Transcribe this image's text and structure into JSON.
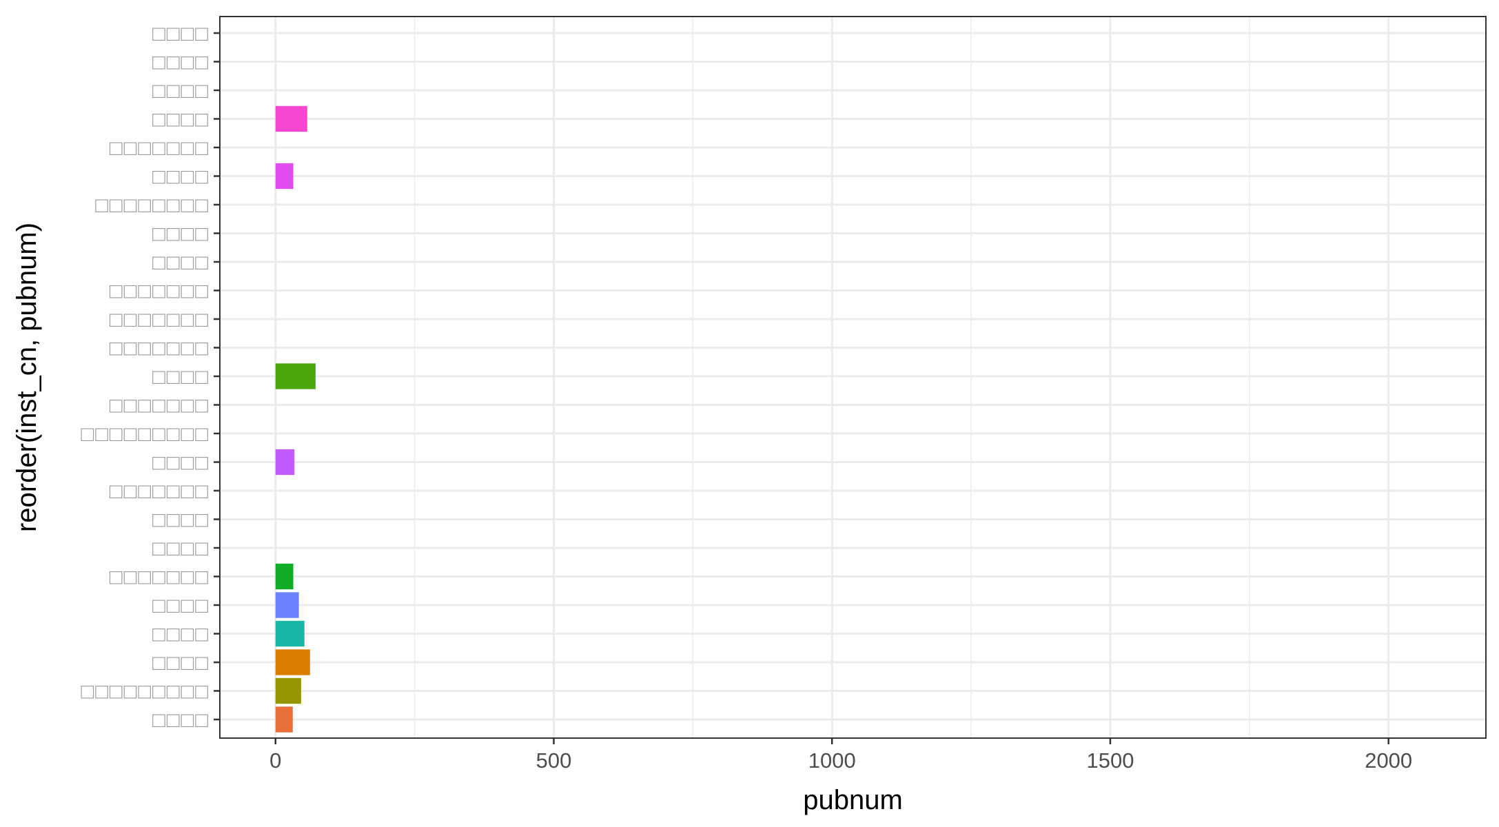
{
  "chart_data": {
    "type": "bar",
    "orientation": "horizontal",
    "title": "",
    "xlabel": "pubnum",
    "ylabel": "reorder(inst_cn, pubnum)",
    "xlim": [
      -100,
      2175
    ],
    "x_ticks_major": [
      0,
      500,
      1000,
      1500,
      2000
    ],
    "x_ticks_minor": [
      250,
      750,
      1250,
      1750
    ],
    "x_tick_labels": [
      "0",
      "500",
      "1000",
      "1500",
      "2000"
    ],
    "grid": true,
    "legend": "none",
    "categories": [
      "□□□□",
      "□□□□□□□□□",
      "□□□□",
      "□□□□",
      "□□□□",
      "□□□□□□□",
      "□□□□",
      "□□□□",
      "□□□□□□□",
      "□□□□",
      "□□□□□□□□□",
      "□□□□□□□",
      "□□□□",
      "□□□□□□□",
      "□□□□□□□",
      "□□□□□□□",
      "□□□□",
      "□□□□",
      "□□□□□□□□",
      "□□□□",
      "□□□□□□□",
      "□□□□",
      "□□□□",
      "□□□□",
      "□□□□"
    ],
    "values": [
      31,
      46,
      62,
      52,
      42,
      32,
      0,
      0,
      0,
      34,
      0,
      0,
      72,
      0,
      0,
      0,
      0,
      0,
      0,
      32,
      0,
      57,
      0,
      0,
      0
    ],
    "colors": [
      "#E8703A",
      "#939600",
      "#DC7C00",
      "#17B6A5",
      "#6C82FF",
      "#12AD26",
      "#CCCCCC",
      "#CCCCCC",
      "#CCCCCC",
      "#C35AFF",
      "#CCCCCC",
      "#CCCCCC",
      "#4BA60E",
      "#CCCCCC",
      "#CCCCCC",
      "#CCCCCC",
      "#CCCCCC",
      "#CCCCCC",
      "#CCCCCC",
      "#E24DF0",
      "#CCCCCC",
      "#F646D2",
      "#CCCCCC",
      "#CCCCCC",
      "#CCCCCC"
    ]
  }
}
